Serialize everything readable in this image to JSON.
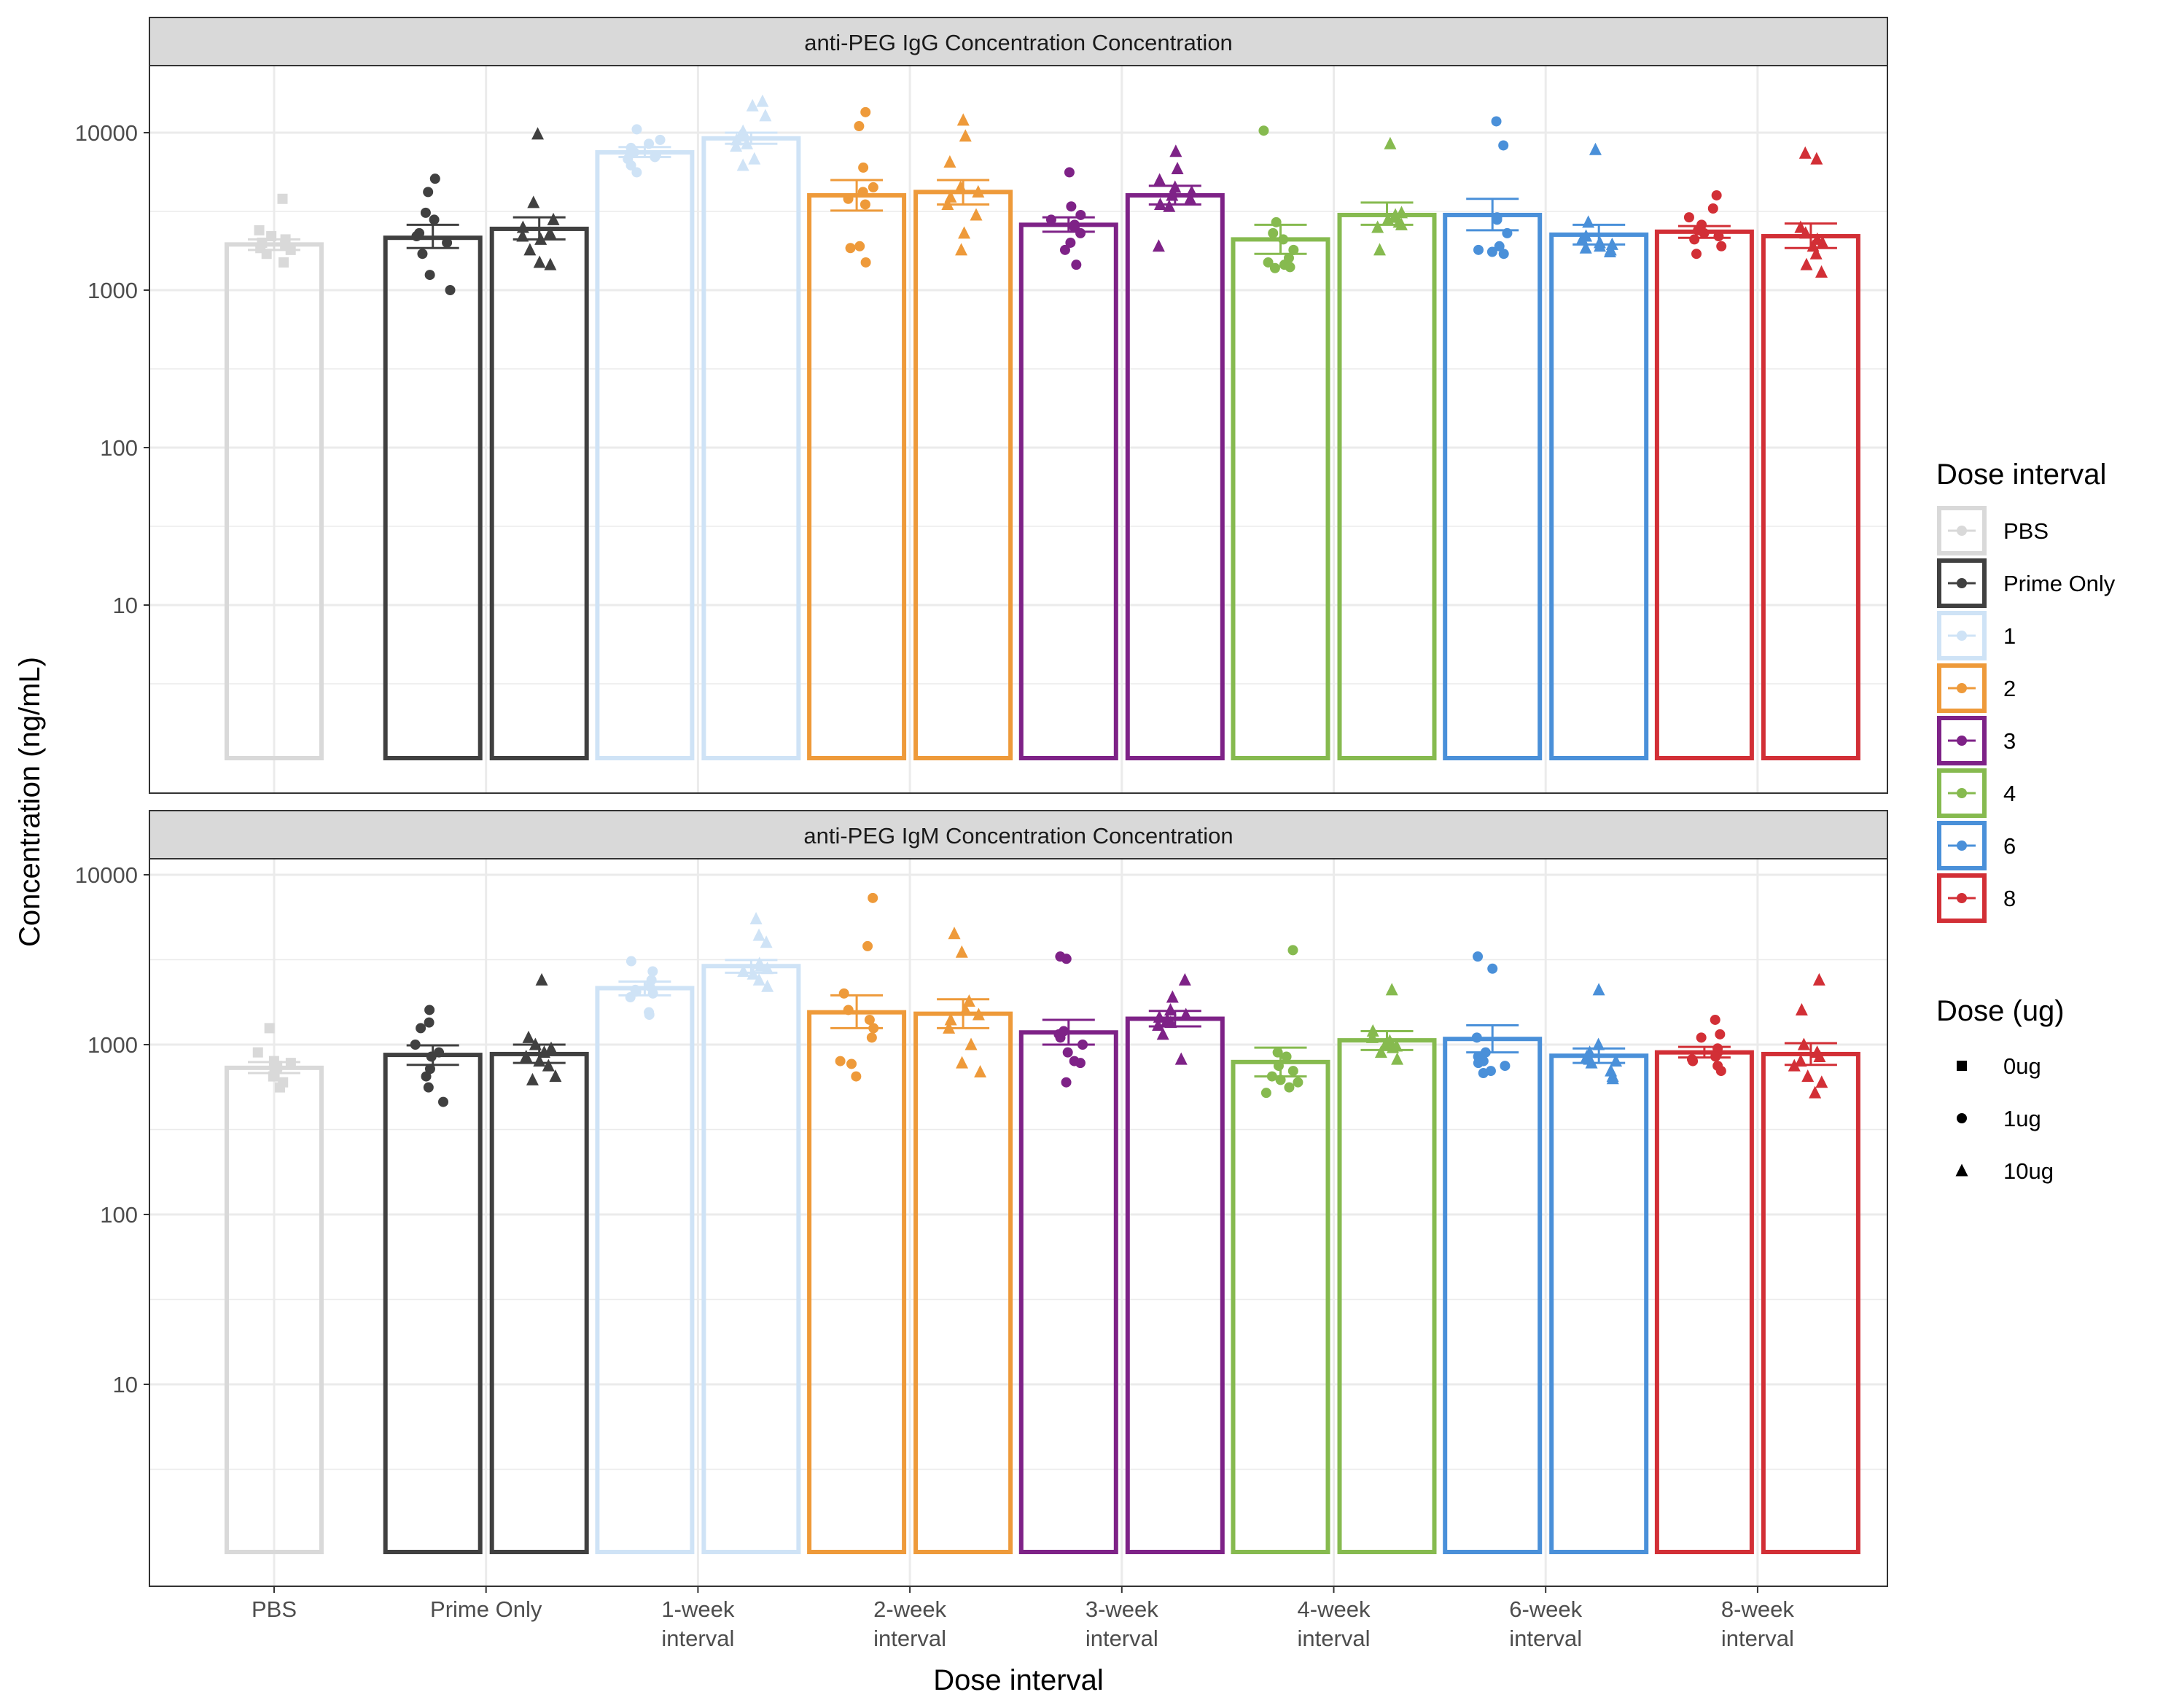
{
  "chart_data": {
    "type": "bar",
    "description_free": true,
    "x_label": "Dose interval",
    "y_label": "Concentration (ng/mL)",
    "y_scale": "log10",
    "y_ticks": [
      10,
      100,
      1000,
      10000
    ],
    "y_tick_labels": [
      "10",
      "100",
      "1000",
      "10000"
    ],
    "categories": [
      {
        "key": "PBS",
        "label": [
          "PBS"
        ]
      },
      {
        "key": "Prime Only",
        "label": [
          "Prime Only"
        ]
      },
      {
        "key": "1",
        "label": [
          "1-week",
          "interval"
        ]
      },
      {
        "key": "2",
        "label": [
          "2-week",
          "interval"
        ]
      },
      {
        "key": "3",
        "label": [
          "3-week",
          "interval"
        ]
      },
      {
        "key": "4",
        "label": [
          "4-week",
          "interval"
        ]
      },
      {
        "key": "6",
        "label": [
          "6-week",
          "interval"
        ]
      },
      {
        "key": "8",
        "label": [
          "8-week",
          "interval"
        ]
      }
    ],
    "colors": {
      "PBS": "#d9d9d9",
      "Prime Only": "#404040",
      "1": "#cfe3f6",
      "2": "#ee9a3a",
      "3": "#7e2287",
      "4": "#86ba4f",
      "6": "#4a90d9",
      "8": "#d22f36"
    },
    "legend_color": {
      "title": "Dose interval",
      "items": [
        "PBS",
        "Prime Only",
        "1",
        "2",
        "3",
        "4",
        "6",
        "8"
      ]
    },
    "legend_shape": {
      "title": "Dose (ug)",
      "items": [
        {
          "label": "0ug",
          "shape": "square"
        },
        {
          "label": "1ug",
          "shape": "circle"
        },
        {
          "label": "10ug",
          "shape": "triangle"
        }
      ]
    },
    "panels": [
      {
        "title": "anti-PEG IgG Concentration Concentration",
        "bars": [
          {
            "category": "PBS",
            "dose": "0ug",
            "mean": 1950,
            "err_lo": 1800,
            "err_hi": 2100,
            "points": [
              3800,
              2400,
              2200,
              2100,
              2000,
              1950,
              1850,
              1800,
              1700,
              1500
            ]
          },
          {
            "category": "Prime Only",
            "dose": "1ug",
            "mean": 2150,
            "err_lo": 1850,
            "err_hi": 2600,
            "points": [
              5100,
              4200,
              3100,
              2800,
              2300,
              2200,
              2000,
              1700,
              1250,
              1000
            ]
          },
          {
            "category": "Prime Only",
            "dose": "10ug",
            "mean": 2450,
            "err_lo": 2100,
            "err_hi": 2900,
            "points": [
              9800,
              3600,
              2800,
              2500,
              2300,
              2200,
              2100,
              1800,
              1500,
              1450
            ]
          },
          {
            "category": "1",
            "dose": "1ug",
            "mean": 7500,
            "err_lo": 7000,
            "err_hi": 8100,
            "points": [
              10500,
              9000,
              8500,
              8000,
              7500,
              7200,
              7000,
              6800,
              6200,
              5600
            ]
          },
          {
            "category": "1",
            "dose": "10ug",
            "mean": 9200,
            "err_lo": 8500,
            "err_hi": 10000,
            "points": [
              15800,
              14800,
              12800,
              10200,
              9500,
              9000,
              8500,
              8200,
              6800,
              6200
            ]
          },
          {
            "category": "2",
            "dose": "1ug",
            "mean": 4000,
            "err_lo": 3200,
            "err_hi": 5000,
            "points": [
              13500,
              11000,
              6000,
              4500,
              4200,
              3800,
              3500,
              1900,
              1850,
              1500
            ]
          },
          {
            "category": "2",
            "dose": "10ug",
            "mean": 4200,
            "err_lo": 3500,
            "err_hi": 5000,
            "points": [
              12000,
              9500,
              6500,
              4500,
              4200,
              3900,
              3500,
              3000,
              2300,
              1800
            ]
          },
          {
            "category": "3",
            "dose": "1ug",
            "mean": 2600,
            "err_lo": 2350,
            "err_hi": 2900,
            "points": [
              5600,
              3400,
              3000,
              2800,
              2600,
              2500,
              2300,
              2000,
              1800,
              1450
            ]
          },
          {
            "category": "3",
            "dose": "10ug",
            "mean": 4000,
            "err_lo": 3500,
            "err_hi": 4600,
            "points": [
              7600,
              5900,
              5000,
              4500,
              4200,
              4000,
              3800,
              3500,
              3400,
              1900
            ]
          },
          {
            "category": "4",
            "dose": "1ug",
            "mean": 2100,
            "err_lo": 1700,
            "err_hi": 2600,
            "points": [
              10300,
              2700,
              2300,
              2100,
              1800,
              1600,
              1500,
              1450,
              1400,
              1380
            ]
          },
          {
            "category": "4",
            "dose": "10ug",
            "mean": 3000,
            "err_lo": 2600,
            "err_hi": 3600,
            "points": [
              8500,
              3100,
              3000,
              2900,
              2800,
              2700,
              2600,
              2500,
              1800
            ]
          },
          {
            "category": "6",
            "dose": "1ug",
            "mean": 3000,
            "err_lo": 2400,
            "err_hi": 3800,
            "points": [
              11800,
              8300,
              2900,
              2800,
              2300,
              1900,
              1800,
              1750,
              1700
            ]
          },
          {
            "category": "6",
            "dose": "10ug",
            "mean": 2250,
            "err_lo": 1950,
            "err_hi": 2600,
            "points": [
              7800,
              2700,
              2200,
              2100,
              2000,
              1950,
              1900,
              1850,
              1800,
              1750
            ]
          },
          {
            "category": "8",
            "dose": "1ug",
            "mean": 2350,
            "err_lo": 2150,
            "err_hi": 2550,
            "points": [
              4000,
              3300,
              2900,
              2600,
              2400,
              2300,
              2200,
              2100,
              1900,
              1700
            ]
          },
          {
            "category": "8",
            "dose": "10ug",
            "mean": 2200,
            "err_lo": 1850,
            "err_hi": 2650,
            "points": [
              7400,
              6800,
              2500,
              2300,
              2100,
              2000,
              1900,
              1700,
              1450,
              1300
            ]
          }
        ]
      },
      {
        "title": "anti-PEG IgM Concentration Concentration",
        "bars": [
          {
            "category": "PBS",
            "dose": "0ug",
            "mean": 730,
            "err_lo": 680,
            "err_hi": 790,
            "points": [
              1250,
              900,
              800,
              780,
              750,
              720,
              680,
              650,
              600,
              560
            ]
          },
          {
            "category": "Prime Only",
            "dose": "1ug",
            "mean": 870,
            "err_lo": 760,
            "err_hi": 990,
            "points": [
              1600,
              1350,
              1250,
              1000,
              900,
              850,
              720,
              650,
              560,
              460
            ]
          },
          {
            "category": "Prime Only",
            "dose": "10ug",
            "mean": 880,
            "err_lo": 780,
            "err_hi": 1000,
            "points": [
              2400,
              1100,
              1000,
              950,
              900,
              850,
              800,
              750,
              650,
              620
            ]
          },
          {
            "category": "1",
            "dose": "1ug",
            "mean": 2150,
            "err_lo": 1950,
            "err_hi": 2350,
            "points": [
              3100,
              2700,
              2400,
              2200,
              2100,
              2050,
              2000,
              1900,
              1550,
              1500
            ]
          },
          {
            "category": "1",
            "dose": "10ug",
            "mean": 2900,
            "err_lo": 2650,
            "err_hi": 3150,
            "points": [
              5500,
              4400,
              4000,
              3000,
              2900,
              2800,
              2700,
              2600,
              2400,
              2200
            ]
          },
          {
            "category": "2",
            "dose": "1ug",
            "mean": 1550,
            "err_lo": 1250,
            "err_hi": 1950,
            "points": [
              7300,
              3800,
              2000,
              1600,
              1400,
              1250,
              1100,
              800,
              770,
              650
            ]
          },
          {
            "category": "2",
            "dose": "10ug",
            "mean": 1520,
            "err_lo": 1250,
            "err_hi": 1850,
            "points": [
              4500,
              3500,
              1800,
              1600,
              1500,
              1400,
              1250,
              1000,
              780,
              690
            ]
          },
          {
            "category": "3",
            "dose": "1ug",
            "mean": 1180,
            "err_lo": 1000,
            "err_hi": 1400,
            "points": [
              3300,
              3200,
              1200,
              1150,
              1100,
              1000,
              900,
              800,
              780,
              600
            ]
          },
          {
            "category": "3",
            "dose": "10ug",
            "mean": 1420,
            "err_lo": 1280,
            "err_hi": 1580,
            "points": [
              2400,
              1900,
              1600,
              1500,
              1450,
              1400,
              1350,
              1300,
              1150,
              820
            ]
          },
          {
            "category": "4",
            "dose": "1ug",
            "mean": 790,
            "err_lo": 650,
            "err_hi": 960,
            "points": [
              3600,
              900,
              850,
              750,
              700,
              650,
              620,
              600,
              560,
              520
            ]
          },
          {
            "category": "4",
            "dose": "10ug",
            "mean": 1060,
            "err_lo": 930,
            "err_hi": 1200,
            "points": [
              2100,
              1200,
              1100,
              1050,
              1000,
              980,
              960,
              900,
              820
            ]
          },
          {
            "category": "6",
            "dose": "1ug",
            "mean": 1080,
            "err_lo": 900,
            "err_hi": 1300,
            "points": [
              3300,
              2800,
              1100,
              900,
              850,
              800,
              780,
              750,
              700,
              680
            ]
          },
          {
            "category": "6",
            "dose": "10ug",
            "mean": 860,
            "err_lo": 780,
            "err_hi": 950,
            "points": [
              2100,
              1000,
              900,
              850,
              820,
              800,
              780,
              700,
              650,
              630
            ]
          },
          {
            "category": "8",
            "dose": "1ug",
            "mean": 900,
            "err_lo": 840,
            "err_hi": 970,
            "points": [
              1400,
              1150,
              1100,
              950,
              900,
              850,
              820,
              800,
              750,
              700
            ]
          },
          {
            "category": "8",
            "dose": "10ug",
            "mean": 880,
            "err_lo": 760,
            "err_hi": 1020,
            "points": [
              2400,
              1600,
              1000,
              900,
              850,
              800,
              750,
              650,
              600,
              520
            ]
          }
        ]
      }
    ]
  }
}
